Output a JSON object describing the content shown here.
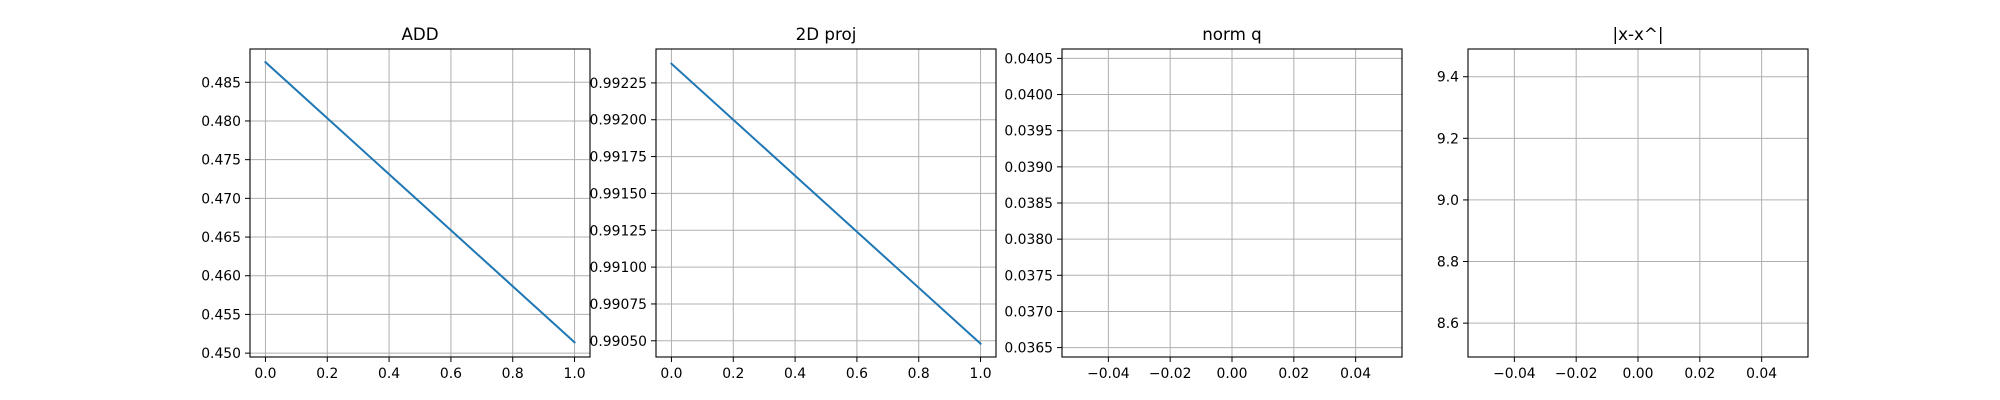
{
  "chart_data": [
    {
      "type": "line",
      "title": "ADD",
      "xlabel": "",
      "ylabel": "",
      "xlim": [
        -0.05,
        1.05
      ],
      "ylim": [
        0.4495,
        0.4893
      ],
      "xticks": [
        0.0,
        0.2,
        0.4,
        0.6,
        0.8,
        1.0
      ],
      "xtick_labels": [
        "0.0",
        "0.2",
        "0.4",
        "0.6",
        "0.8",
        "1.0"
      ],
      "yticks": [
        0.45,
        0.455,
        0.46,
        0.465,
        0.47,
        0.475,
        0.48,
        0.485
      ],
      "ytick_labels": [
        "0.450",
        "0.455",
        "0.460",
        "0.465",
        "0.470",
        "0.475",
        "0.480",
        "0.485"
      ],
      "grid": true,
      "color": "#1f77b4",
      "series": [
        {
          "x": [
            0.0,
            1.0
          ],
          "y": [
            0.4876,
            0.4514
          ]
        }
      ]
    },
    {
      "type": "line",
      "title": "2D proj",
      "xlabel": "",
      "ylabel": "",
      "xlim": [
        -0.05,
        1.05
      ],
      "ylim": [
        0.99039,
        0.99248
      ],
      "xticks": [
        0.0,
        0.2,
        0.4,
        0.6,
        0.8,
        1.0
      ],
      "xtick_labels": [
        "0.0",
        "0.2",
        "0.4",
        "0.6",
        "0.8",
        "1.0"
      ],
      "yticks": [
        0.9905,
        0.99075,
        0.991,
        0.99125,
        0.9915,
        0.99175,
        0.992,
        0.99225
      ],
      "ytick_labels": [
        "0.99050",
        "0.99075",
        "0.99100",
        "0.99125",
        "0.99150",
        "0.99175",
        "0.99200",
        "0.99225"
      ],
      "grid": true,
      "color": "#1f77b4",
      "series": [
        {
          "x": [
            0.0,
            1.0
          ],
          "y": [
            0.99238,
            0.99048
          ]
        }
      ]
    },
    {
      "type": "line",
      "title": "norm q",
      "xlabel": "",
      "ylabel": "",
      "xlim": [
        -0.055,
        0.055
      ],
      "ylim": [
        0.03637,
        0.04063
      ],
      "xticks": [
        -0.04,
        -0.02,
        0.0,
        0.02,
        0.04
      ],
      "xtick_labels": [
        "−0.04",
        "−0.02",
        "0.00",
        "0.02",
        "0.04"
      ],
      "yticks": [
        0.0365,
        0.037,
        0.0375,
        0.038,
        0.0385,
        0.039,
        0.0395,
        0.04,
        0.0405
      ],
      "ytick_labels": [
        "0.0365",
        "0.0370",
        "0.0375",
        "0.0380",
        "0.0385",
        "0.0390",
        "0.0395",
        "0.0400",
        "0.0405"
      ],
      "grid": true,
      "color": "#1f77b4",
      "series": []
    },
    {
      "type": "line",
      "title": "|x-x^|",
      "xlabel": "",
      "ylabel": "",
      "xlim": [
        -0.055,
        0.055
      ],
      "ylim": [
        8.49,
        9.49
      ],
      "xticks": [
        -0.04,
        -0.02,
        0.0,
        0.02,
        0.04
      ],
      "xtick_labels": [
        "−0.04",
        "−0.02",
        "0.00",
        "0.02",
        "0.04"
      ],
      "yticks": [
        8.6,
        8.8,
        9.0,
        9.2,
        9.4
      ],
      "ytick_labels": [
        "8.6",
        "8.8",
        "9.0",
        "9.2",
        "9.4"
      ],
      "grid": true,
      "color": "#1f77b4",
      "series": []
    }
  ]
}
